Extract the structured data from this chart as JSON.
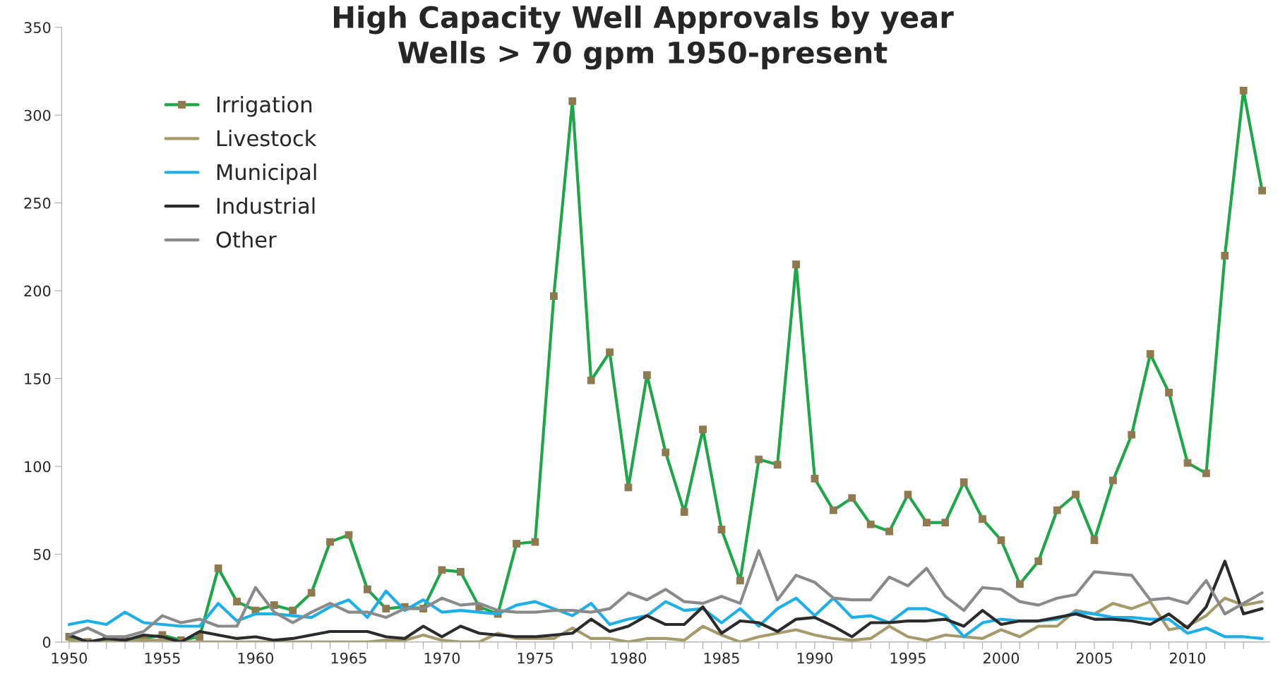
{
  "chart_data": {
    "type": "line",
    "title": "High Capacity Well Approvals by year\nWells > 70 gpm 1950-present",
    "x": [
      1950,
      1951,
      1952,
      1953,
      1954,
      1955,
      1956,
      1957,
      1958,
      1959,
      1960,
      1961,
      1962,
      1963,
      1964,
      1965,
      1966,
      1967,
      1968,
      1969,
      1970,
      1971,
      1972,
      1973,
      1974,
      1975,
      1976,
      1977,
      1978,
      1979,
      1980,
      1981,
      1982,
      1983,
      1984,
      1985,
      1986,
      1987,
      1988,
      1989,
      1990,
      1991,
      1992,
      1993,
      1994,
      1995,
      1996,
      1997,
      1998,
      1999,
      2000,
      2001,
      2002,
      2003,
      2004,
      2005,
      2006,
      2007,
      2008,
      2009,
      2010,
      2011,
      2012,
      2013,
      2014
    ],
    "series": [
      {
        "name": "Irrigation",
        "color": "#1fa64b",
        "marker": "square",
        "values": [
          3,
          0,
          1,
          1,
          2,
          4,
          1,
          3,
          42,
          23,
          18,
          21,
          18,
          28,
          57,
          61,
          30,
          19,
          20,
          19,
          41,
          40,
          20,
          16,
          56,
          57,
          197,
          308,
          149,
          165,
          88,
          152,
          108,
          74,
          121,
          64,
          35,
          104,
          101,
          215,
          93,
          75,
          82,
          67,
          63,
          84,
          68,
          68,
          91,
          70,
          58,
          33,
          46,
          75,
          84,
          58,
          92,
          118,
          164,
          142,
          102,
          96,
          220,
          314,
          257
        ]
      },
      {
        "name": "Livestock",
        "color": "#a59a6c",
        "values": [
          1,
          0,
          0,
          1,
          1,
          1,
          0,
          0,
          0,
          0,
          0,
          0,
          0,
          0,
          0,
          0,
          0,
          1,
          1,
          4,
          1,
          0,
          0,
          5,
          2,
          2,
          2,
          8,
          2,
          2,
          0,
          2,
          2,
          1,
          9,
          4,
          0,
          3,
          5,
          7,
          4,
          2,
          1,
          2,
          9,
          3,
          1,
          4,
          3,
          2,
          7,
          3,
          9,
          9,
          18,
          16,
          22,
          19,
          23,
          7,
          9,
          15,
          25,
          21,
          23
        ]
      },
      {
        "name": "Municipal",
        "color": "#1eaee8",
        "values": [
          10,
          12,
          10,
          17,
          11,
          10,
          9,
          9,
          22,
          12,
          16,
          16,
          15,
          14,
          20,
          24,
          14,
          29,
          18,
          24,
          17,
          18,
          17,
          16,
          21,
          23,
          19,
          15,
          22,
          10,
          13,
          15,
          23,
          18,
          19,
          11,
          19,
          9,
          19,
          25,
          15,
          25,
          14,
          15,
          11,
          19,
          19,
          15,
          3,
          11,
          13,
          12,
          12,
          13,
          17,
          16,
          14,
          14,
          13,
          13,
          5,
          8,
          3,
          3,
          2
        ]
      },
      {
        "name": "Industrial",
        "color": "#2b2b2b",
        "values": [
          4,
          0,
          2,
          1,
          4,
          3,
          0,
          6,
          4,
          2,
          3,
          1,
          2,
          4,
          6,
          6,
          6,
          3,
          2,
          9,
          3,
          9,
          5,
          4,
          3,
          3,
          4,
          5,
          13,
          6,
          9,
          15,
          10,
          10,
          20,
          5,
          12,
          11,
          6,
          13,
          14,
          9,
          3,
          11,
          11,
          12,
          12,
          13,
          9,
          18,
          10,
          12,
          12,
          14,
          16,
          13,
          13,
          12,
          10,
          16,
          8,
          20,
          46,
          16,
          19
        ]
      },
      {
        "name": "Other",
        "color": "#8a8a8a",
        "values": [
          4,
          8,
          3,
          3,
          6,
          15,
          11,
          13,
          9,
          9,
          31,
          17,
          11,
          17,
          22,
          17,
          17,
          14,
          19,
          19,
          25,
          21,
          22,
          18,
          17,
          17,
          18,
          18,
          17,
          19,
          28,
          24,
          30,
          23,
          22,
          26,
          22,
          52,
          24,
          38,
          34,
          25,
          24,
          24,
          37,
          32,
          42,
          26,
          18,
          31,
          30,
          23,
          21,
          25,
          27,
          40,
          39,
          38,
          24,
          25,
          22,
          35,
          16,
          22,
          28
        ]
      }
    ],
    "xlim": [
      1949.6,
      2014.4
    ],
    "xticks": [
      1950,
      {
        "value": 1951,
        "label": null
      },
      {
        "value": 1952,
        "label": null
      },
      {
        "value": 1953,
        "label": null
      },
      {
        "value": 1954,
        "label": null
      },
      1955,
      {
        "value": 1956,
        "label": null
      },
      {
        "value": 1957,
        "label": null
      },
      {
        "value": 1958,
        "label": null
      },
      {
        "value": 1959,
        "label": null
      },
      1960,
      {
        "value": 1961,
        "label": null
      },
      {
        "value": 1962,
        "label": null
      },
      {
        "value": 1963,
        "label": null
      },
      {
        "value": 1964,
        "label": null
      },
      1965,
      {
        "value": 1966,
        "label": null
      },
      {
        "value": 1967,
        "label": null
      },
      {
        "value": 1968,
        "label": null
      },
      {
        "value": 1969,
        "label": null
      },
      1970,
      {
        "value": 1971,
        "label": null
      },
      {
        "value": 1972,
        "label": null
      },
      {
        "value": 1973,
        "label": null
      },
      {
        "value": 1974,
        "label": null
      },
      1975,
      {
        "value": 1976,
        "label": null
      },
      {
        "value": 1977,
        "label": null
      },
      {
        "value": 1978,
        "label": null
      },
      {
        "value": 1979,
        "label": null
      },
      1980,
      {
        "value": 1981,
        "label": null
      },
      {
        "value": 1982,
        "label": null
      },
      {
        "value": 1983,
        "label": null
      },
      {
        "value": 1984,
        "label": null
      },
      1985,
      {
        "value": 1986,
        "label": null
      },
      {
        "value": 1987,
        "label": null
      },
      {
        "value": 1988,
        "label": null
      },
      {
        "value": 1989,
        "label": null
      },
      1990,
      {
        "value": 1991,
        "label": null
      },
      {
        "value": 1992,
        "label": null
      },
      {
        "value": 1993,
        "label": null
      },
      {
        "value": 1994,
        "label": null
      },
      1995,
      {
        "value": 1996,
        "label": null
      },
      {
        "value": 1997,
        "label": null
      },
      {
        "value": 1998,
        "label": null
      },
      {
        "value": 1999,
        "label": null
      },
      2000,
      {
        "value": 2001,
        "label": null
      },
      {
        "value": 2002,
        "label": null
      },
      {
        "value": 2003,
        "label": null
      },
      {
        "value": 2004,
        "label": null
      },
      2005,
      {
        "value": 2006,
        "label": null
      },
      {
        "value": 2007,
        "label": null
      },
      {
        "value": 2008,
        "label": null
      },
      {
        "value": 2009,
        "label": null
      },
      2010,
      {
        "value": 2011,
        "label": null
      },
      {
        "value": 2012,
        "label": null
      },
      {
        "value": 2013,
        "label": null
      }
    ],
    "ylim": [
      0,
      350
    ],
    "yticks": [
      0,
      50,
      100,
      150,
      200,
      250,
      300,
      350
    ],
    "grid": false,
    "legend": "top left"
  }
}
